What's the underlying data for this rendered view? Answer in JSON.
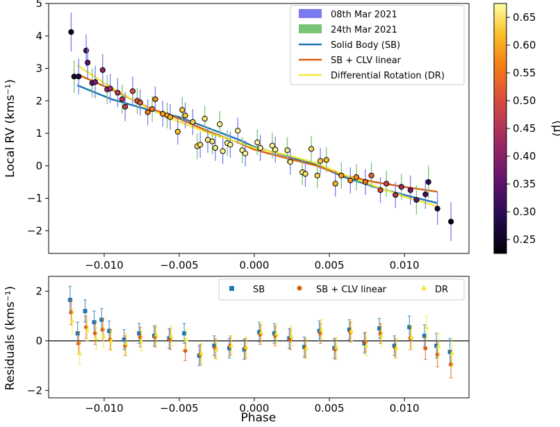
{
  "chart_data": [
    {
      "type": "scatter",
      "panel": "top",
      "xlabel": "",
      "ylabel": "Local RV (kms⁻¹)",
      "xlim": [
        -0.0137,
        0.0143
      ],
      "ylim": [
        -2.7,
        5.0
      ],
      "xticks": [
        -0.01,
        -0.005,
        0.0,
        0.005,
        0.01
      ],
      "xtick_labels": [
        "−0.010",
        "−0.005",
        "0.000",
        "0.005",
        "0.010"
      ],
      "yticks": [
        -2,
        -1,
        0,
        1,
        2,
        3,
        4,
        5
      ],
      "ytick_labels": [
        "−2",
        "−1",
        "0",
        "1",
        "2",
        "3",
        "4",
        "5"
      ],
      "legend": {
        "position": "top-right",
        "entries": [
          {
            "label": "08th Mar 2021",
            "kind": "patch",
            "color": "#7b7bf0"
          },
          {
            "label": "24th Mar 2021",
            "kind": "patch",
            "color": "#77c477"
          },
          {
            "label": "Solid Body (SB)",
            "kind": "line",
            "color": "#1f77b4"
          },
          {
            "label": "SB + CLV linear",
            "kind": "line",
            "color": "#d95f0e"
          },
          {
            "label": "Differential Rotation (DR)",
            "kind": "line",
            "color": "#f2e836"
          }
        ]
      },
      "models": [
        {
          "name": "Solid Body (SB)",
          "color": "#1f77b4",
          "x": [
            -0.0118,
            -0.0095,
            -0.007,
            -0.005,
            -0.003,
            -0.001,
            0.0,
            0.002,
            0.004,
            0.006,
            0.008,
            0.01,
            0.0122
          ],
          "y": [
            2.48,
            2.05,
            1.72,
            1.5,
            1.15,
            0.8,
            0.58,
            0.32,
            0.05,
            -0.35,
            -0.65,
            -0.9,
            -1.15
          ]
        },
        {
          "name": "SB + CLV linear",
          "color": "#d95f0e",
          "x": [
            -0.0118,
            -0.0095,
            -0.007,
            -0.005,
            -0.003,
            -0.001,
            0.0,
            0.002,
            0.004,
            0.006,
            0.008,
            0.01,
            0.0122
          ],
          "y": [
            2.82,
            2.35,
            1.78,
            1.45,
            1.05,
            0.7,
            0.5,
            0.25,
            0.02,
            -0.3,
            -0.5,
            -0.65,
            -0.8
          ]
        },
        {
          "name": "Differential Rotation (DR)",
          "color": "#f2e836",
          "x": [
            -0.0118,
            -0.0095,
            -0.007,
            -0.005,
            -0.003,
            -0.001,
            0.0,
            0.002,
            0.004,
            0.006,
            0.008,
            0.01,
            0.0122
          ],
          "y": [
            3.1,
            2.4,
            1.75,
            1.35,
            1.0,
            0.72,
            0.55,
            0.35,
            0.1,
            -0.28,
            -0.62,
            -0.95,
            -1.25
          ]
        }
      ],
      "points_mar08": [
        {
          "x": -0.0122,
          "y": 4.12,
          "err": 0.6,
          "mu": 0.23
        },
        {
          "x": -0.0117,
          "y": 2.75,
          "err": 0.55,
          "mu": 0.28
        },
        {
          "x": -0.0112,
          "y": 3.55,
          "err": 0.5,
          "mu": 0.33
        },
        {
          "x": -0.0111,
          "y": 3.18,
          "err": 0.48,
          "mu": 0.35
        },
        {
          "x": -0.0106,
          "y": 2.58,
          "err": 0.5,
          "mu": 0.38
        },
        {
          "x": -0.0101,
          "y": 2.95,
          "err": 0.5,
          "mu": 0.4
        },
        {
          "x": -0.0096,
          "y": 2.38,
          "err": 0.45,
          "mu": 0.43
        },
        {
          "x": -0.0091,
          "y": 2.25,
          "err": 0.45,
          "mu": 0.45
        },
        {
          "x": -0.0086,
          "y": 1.82,
          "err": 0.45,
          "mu": 0.47
        },
        {
          "x": -0.0081,
          "y": 2.3,
          "err": 0.45,
          "mu": 0.5
        },
        {
          "x": -0.0076,
          "y": 1.95,
          "err": 0.4,
          "mu": 0.52
        },
        {
          "x": -0.0071,
          "y": 1.65,
          "err": 0.4,
          "mu": 0.55
        },
        {
          "x": -0.0066,
          "y": 2.05,
          "err": 0.4,
          "mu": 0.57
        },
        {
          "x": -0.0061,
          "y": 1.6,
          "err": 0.4,
          "mu": 0.59
        },
        {
          "x": -0.0056,
          "y": 1.5,
          "err": 0.4,
          "mu": 0.61
        },
        {
          "x": -0.0051,
          "y": 1.05,
          "err": 0.4,
          "mu": 0.62
        },
        {
          "x": -0.0046,
          "y": 1.55,
          "err": 0.4,
          "mu": 0.63
        },
        {
          "x": -0.0041,
          "y": 1.35,
          "err": 0.4,
          "mu": 0.64
        },
        {
          "x": -0.0036,
          "y": 0.65,
          "err": 0.4,
          "mu": 0.65
        },
        {
          "x": -0.0031,
          "y": 0.8,
          "err": 0.4,
          "mu": 0.66
        },
        {
          "x": -0.0026,
          "y": 0.55,
          "err": 0.4,
          "mu": 0.66
        },
        {
          "x": -0.0021,
          "y": 0.45,
          "err": 0.4,
          "mu": 0.665
        },
        {
          "x": -0.0016,
          "y": 0.65,
          "err": 0.4,
          "mu": 0.67
        },
        {
          "x": -0.0011,
          "y": 1.08,
          "err": 0.4,
          "mu": 0.67
        },
        {
          "x": -0.0006,
          "y": 0.38,
          "err": 0.4,
          "mu": 0.67
        },
        {
          "x": 0.0004,
          "y": 0.55,
          "err": 0.4,
          "mu": 0.67
        },
        {
          "x": 0.0014,
          "y": 0.5,
          "err": 0.4,
          "mu": 0.665
        },
        {
          "x": 0.0024,
          "y": 0.12,
          "err": 0.4,
          "mu": 0.66
        },
        {
          "x": 0.0034,
          "y": -0.25,
          "err": 0.4,
          "mu": 0.65
        },
        {
          "x": 0.0044,
          "y": 0.15,
          "err": 0.4,
          "mu": 0.63
        },
        {
          "x": 0.0054,
          "y": -0.55,
          "err": 0.4,
          "mu": 0.61
        },
        {
          "x": 0.0064,
          "y": -0.45,
          "err": 0.4,
          "mu": 0.58
        },
        {
          "x": 0.0074,
          "y": -0.5,
          "err": 0.4,
          "mu": 0.55
        },
        {
          "x": 0.0084,
          "y": -0.75,
          "err": 0.4,
          "mu": 0.5
        },
        {
          "x": 0.0094,
          "y": -0.9,
          "err": 0.4,
          "mu": 0.45
        },
        {
          "x": 0.0104,
          "y": -0.75,
          "err": 0.45,
          "mu": 0.38
        },
        {
          "x": 0.0114,
          "y": -0.88,
          "err": 0.45,
          "mu": 0.32
        },
        {
          "x": 0.0122,
          "y": -1.32,
          "err": 0.5,
          "mu": 0.26
        },
        {
          "x": 0.0131,
          "y": -1.72,
          "err": 0.6,
          "mu": 0.23
        }
      ],
      "points_mar24": [
        {
          "x": -0.012,
          "y": 2.75,
          "err": 0.5,
          "mu": 0.27
        },
        {
          "x": -0.0108,
          "y": 2.55,
          "err": 0.45,
          "mu": 0.36
        },
        {
          "x": -0.0098,
          "y": 2.35,
          "err": 0.45,
          "mu": 0.42
        },
        {
          "x": -0.0088,
          "y": 2.05,
          "err": 0.45,
          "mu": 0.46
        },
        {
          "x": -0.0078,
          "y": 2.0,
          "err": 0.4,
          "mu": 0.51
        },
        {
          "x": -0.0068,
          "y": 1.75,
          "err": 0.4,
          "mu": 0.56
        },
        {
          "x": -0.0058,
          "y": 1.55,
          "err": 0.4,
          "mu": 0.6
        },
        {
          "x": -0.0048,
          "y": 1.72,
          "err": 0.4,
          "mu": 0.63
        },
        {
          "x": -0.0038,
          "y": 0.6,
          "err": 0.4,
          "mu": 0.645
        },
        {
          "x": -0.0033,
          "y": 1.45,
          "err": 0.4,
          "mu": 0.655
        },
        {
          "x": -0.0028,
          "y": 0.75,
          "err": 0.4,
          "mu": 0.66
        },
        {
          "x": -0.0023,
          "y": 1.28,
          "err": 0.4,
          "mu": 0.665
        },
        {
          "x": -0.0018,
          "y": 0.7,
          "err": 0.4,
          "mu": 0.67
        },
        {
          "x": -0.0008,
          "y": 0.48,
          "err": 0.4,
          "mu": 0.67
        },
        {
          "x": 0.0002,
          "y": 0.72,
          "err": 0.4,
          "mu": 0.67
        },
        {
          "x": 0.0012,
          "y": 0.62,
          "err": 0.4,
          "mu": 0.665
        },
        {
          "x": 0.0022,
          "y": 0.48,
          "err": 0.4,
          "mu": 0.66
        },
        {
          "x": 0.0032,
          "y": -0.2,
          "err": 0.4,
          "mu": 0.655
        },
        {
          "x": 0.0038,
          "y": 0.52,
          "err": 0.4,
          "mu": 0.645
        },
        {
          "x": 0.0042,
          "y": -0.3,
          "err": 0.4,
          "mu": 0.64
        },
        {
          "x": 0.0048,
          "y": 0.18,
          "err": 0.4,
          "mu": 0.62
        },
        {
          "x": 0.0058,
          "y": -0.3,
          "err": 0.4,
          "mu": 0.6
        },
        {
          "x": 0.0068,
          "y": -0.35,
          "err": 0.4,
          "mu": 0.57
        },
        {
          "x": 0.0078,
          "y": -0.3,
          "err": 0.4,
          "mu": 0.53
        },
        {
          "x": 0.0088,
          "y": -0.55,
          "err": 0.4,
          "mu": 0.48
        },
        {
          "x": 0.0098,
          "y": -0.65,
          "err": 0.4,
          "mu": 0.42
        },
        {
          "x": 0.0108,
          "y": -1.05,
          "err": 0.45,
          "mu": 0.36
        },
        {
          "x": 0.0116,
          "y": -0.5,
          "err": 0.5,
          "mu": 0.3
        }
      ]
    },
    {
      "type": "scatter",
      "panel": "bottom",
      "xlabel": "Phase",
      "ylabel": "Residuals (kms⁻¹)",
      "xlim": [
        -0.0137,
        0.0143
      ],
      "ylim": [
        -2.3,
        2.6
      ],
      "xticks": [
        -0.01,
        -0.005,
        0.0,
        0.005,
        0.01
      ],
      "xtick_labels": [
        "−0.010",
        "−0.005",
        "0.000",
        "0.005",
        "0.010"
      ],
      "yticks": [
        -2,
        0,
        2
      ],
      "ytick_labels": [
        "−2",
        "0",
        "2"
      ],
      "zero_line": 0,
      "legend": {
        "position": "top-right",
        "entries": [
          {
            "label": "SB",
            "marker": "square",
            "color": "#1f77b4"
          },
          {
            "label": "SB + CLV linear",
            "marker": "circle",
            "color": "#d95f0e"
          },
          {
            "label": "DR",
            "marker": "triangle",
            "color": "#f2e836"
          }
        ]
      },
      "series": [
        {
          "name": "SB",
          "color": "#1f77b4",
          "marker": "square",
          "x": [
            -0.0122,
            -0.0117,
            -0.0112,
            -0.0106,
            -0.0101,
            -0.0096,
            -0.0086,
            -0.0076,
            -0.0066,
            -0.0056,
            -0.0046,
            -0.0036,
            -0.0026,
            -0.0016,
            -0.0006,
            0.0004,
            0.0014,
            0.0024,
            0.0034,
            0.0044,
            0.0054,
            0.0064,
            0.0074,
            0.0084,
            0.0094,
            0.0104,
            0.0114,
            0.0122,
            0.0131
          ],
          "y": [
            1.65,
            0.3,
            1.2,
            0.75,
            0.85,
            0.4,
            0.05,
            0.3,
            0.2,
            0.1,
            0.3,
            -0.6,
            -0.2,
            -0.3,
            -0.35,
            0.35,
            0.3,
            0.1,
            -0.25,
            0.4,
            -0.3,
            0.45,
            -0.1,
            0.5,
            -0.2,
            0.55,
            0.2,
            -0.2,
            -0.45
          ],
          "err": [
            0.55,
            0.45,
            0.45,
            0.45,
            0.45,
            0.4,
            0.4,
            0.4,
            0.4,
            0.4,
            0.4,
            0.4,
            0.4,
            0.4,
            0.4,
            0.4,
            0.4,
            0.4,
            0.4,
            0.4,
            0.4,
            0.4,
            0.4,
            0.4,
            0.4,
            0.45,
            0.45,
            0.5,
            0.55
          ]
        },
        {
          "name": "SB + CLV linear",
          "color": "#d95f0e",
          "marker": "circle",
          "x": [
            -0.0122,
            -0.0117,
            -0.0112,
            -0.0106,
            -0.0101,
            -0.0096,
            -0.0086,
            -0.0076,
            -0.0066,
            -0.0056,
            -0.0046,
            -0.0036,
            -0.0026,
            -0.0016,
            -0.0006,
            0.0004,
            0.0014,
            0.0024,
            0.0034,
            0.0044,
            0.0054,
            0.0064,
            0.0074,
            0.0084,
            0.0094,
            0.0104,
            0.0114,
            0.0122,
            0.0131
          ],
          "y": [
            1.15,
            -0.1,
            0.55,
            0.3,
            0.45,
            0.05,
            -0.2,
            0.15,
            0.15,
            0.05,
            -0.4,
            -0.55,
            -0.3,
            -0.2,
            -0.3,
            0.25,
            0.2,
            0.05,
            -0.3,
            0.3,
            -0.35,
            0.35,
            -0.05,
            0.3,
            -0.3,
            0.1,
            -0.3,
            -0.55,
            -0.95
          ],
          "err": [
            0.5,
            0.45,
            0.45,
            0.45,
            0.45,
            0.4,
            0.4,
            0.4,
            0.4,
            0.4,
            0.4,
            0.4,
            0.4,
            0.4,
            0.4,
            0.4,
            0.4,
            0.4,
            0.4,
            0.4,
            0.4,
            0.4,
            0.4,
            0.4,
            0.4,
            0.45,
            0.45,
            0.5,
            0.55
          ]
        },
        {
          "name": "DR",
          "color": "#f2e836",
          "marker": "triangle",
          "x": [
            -0.0122,
            -0.0117,
            -0.0112,
            -0.0106,
            -0.0101,
            -0.0096,
            -0.0086,
            -0.0076,
            -0.0066,
            -0.0056,
            -0.0046,
            -0.0036,
            -0.0026,
            -0.0016,
            -0.0006,
            0.0004,
            0.0014,
            0.0024,
            0.0034,
            0.0044,
            0.0054,
            0.0064,
            0.0074,
            0.0084,
            0.0094,
            0.0104,
            0.0114,
            0.0122,
            0.0131
          ],
          "y": [
            0.8,
            -0.5,
            0.45,
            0.1,
            0.2,
            0.0,
            -0.1,
            0.0,
            0.25,
            0.2,
            0.05,
            -0.5,
            -0.35,
            -0.2,
            -0.25,
            0.35,
            0.3,
            0.2,
            -0.3,
            0.45,
            -0.25,
            0.4,
            -0.2,
            0.2,
            -0.3,
            0.15,
            0.55,
            -0.2,
            -0.5
          ],
          "err": [
            0.5,
            0.45,
            0.45,
            0.45,
            0.45,
            0.4,
            0.4,
            0.4,
            0.4,
            0.4,
            0.4,
            0.4,
            0.4,
            0.4,
            0.4,
            0.4,
            0.4,
            0.4,
            0.4,
            0.4,
            0.4,
            0.4,
            0.4,
            0.4,
            0.4,
            0.45,
            0.45,
            0.5,
            0.55
          ]
        }
      ]
    }
  ],
  "colorbar": {
    "label": "⟨μ⟩",
    "colormap": "inferno",
    "range": [
      0.225,
      0.675
    ],
    "ticks": [
      0.25,
      0.3,
      0.35,
      0.4,
      0.45,
      0.5,
      0.55,
      0.6,
      0.65
    ],
    "tick_labels": [
      "0.25",
      "0.30",
      "0.35",
      "0.40",
      "0.45",
      "0.50",
      "0.55",
      "0.60",
      "0.65"
    ]
  }
}
